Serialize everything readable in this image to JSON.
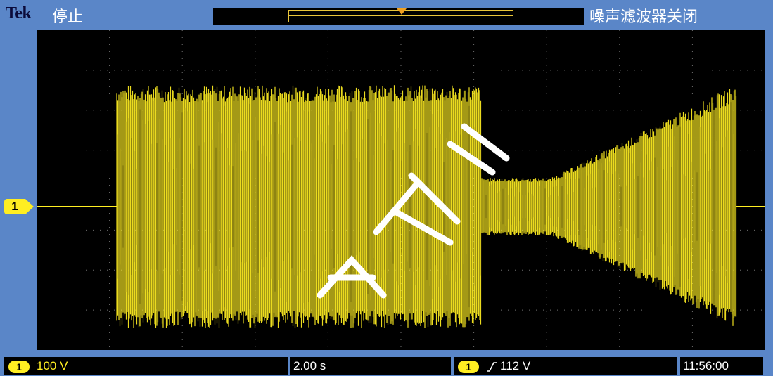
{
  "header": {
    "brand": "Tek",
    "acquisition_state": "停止",
    "noise_filter_status": "噪声滤波器关闭"
  },
  "channel": {
    "marker_label": "1",
    "color": "#ffee22"
  },
  "status_bar": {
    "ch_badge": "1",
    "volts_per_div": "100 V",
    "time_per_div": "2.00 s",
    "trigger_source_badge": "1",
    "trigger_slope_icon": "rising-edge-icon",
    "trigger_level": "112 V",
    "clock": "11:56:00"
  },
  "colors": {
    "frame": "#5a86c8",
    "screen": "#000000",
    "trace": "#ffee22",
    "trigger_marker": "#f0a020"
  }
}
